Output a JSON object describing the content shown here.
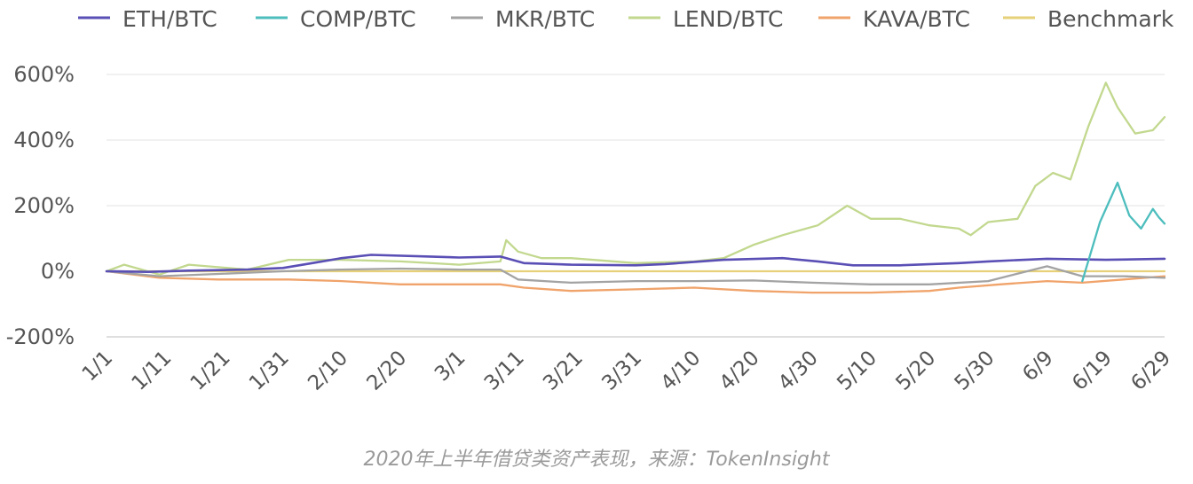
{
  "caption": "2020年上半年借贷类资产表现，来源：TokenInsight",
  "chart_data": {
    "type": "line",
    "title": "",
    "xlabel": "",
    "ylabel": "",
    "y_unit": "%",
    "ylim": [
      -200,
      600
    ],
    "y_ticks": [
      -200,
      0,
      200,
      400,
      600
    ],
    "y_tick_labels": [
      "-200%",
      "0%",
      "200%",
      "400%",
      "600%"
    ],
    "x_range": [
      "1/1",
      "6/29"
    ],
    "x_ticks": [
      "1/1",
      "1/11",
      "1/21",
      "1/31",
      "2/10",
      "2/20",
      "3/1",
      "3/11",
      "3/21",
      "3/31",
      "4/10",
      "4/20",
      "4/30",
      "5/10",
      "5/20",
      "5/30",
      "6/9",
      "6/19",
      "6/29"
    ],
    "grid": true,
    "legend_position": "top",
    "series": [
      {
        "name": "ETH/BTC",
        "color": "#5a4fb5",
        "points": [
          [
            "1/1",
            0
          ],
          [
            "1/8",
            -2
          ],
          [
            "1/15",
            2
          ],
          [
            "1/25",
            5
          ],
          [
            "1/31",
            10
          ],
          [
            "2/5",
            25
          ],
          [
            "2/10",
            40
          ],
          [
            "2/15",
            50
          ],
          [
            "2/25",
            45
          ],
          [
            "3/1",
            42
          ],
          [
            "3/8",
            45
          ],
          [
            "3/12",
            25
          ],
          [
            "3/20",
            20
          ],
          [
            "3/31",
            18
          ],
          [
            "4/5",
            22
          ],
          [
            "4/15",
            35
          ],
          [
            "4/25",
            40
          ],
          [
            "5/1",
            30
          ],
          [
            "5/7",
            18
          ],
          [
            "5/15",
            18
          ],
          [
            "5/25",
            25
          ],
          [
            "5/30",
            30
          ],
          [
            "6/9",
            38
          ],
          [
            "6/19",
            35
          ],
          [
            "6/29",
            38
          ]
        ]
      },
      {
        "name": "COMP/BTC",
        "color": "#4dbdbd",
        "points": [
          [
            "6/15",
            -30
          ],
          [
            "6/18",
            150
          ],
          [
            "6/21",
            270
          ],
          [
            "6/23",
            170
          ],
          [
            "6/25",
            130
          ],
          [
            "6/27",
            190
          ],
          [
            "6/28",
            165
          ],
          [
            "6/29",
            145
          ]
        ]
      },
      {
        "name": "MKR/BTC",
        "color": "#a3a3a3",
        "points": [
          [
            "1/1",
            0
          ],
          [
            "1/10",
            -15
          ],
          [
            "1/20",
            -8
          ],
          [
            "1/31",
            0
          ],
          [
            "2/10",
            5
          ],
          [
            "2/20",
            8
          ],
          [
            "3/1",
            5
          ],
          [
            "3/8",
            5
          ],
          [
            "3/11",
            -25
          ],
          [
            "3/20",
            -35
          ],
          [
            "3/31",
            -30
          ],
          [
            "4/10",
            -30
          ],
          [
            "4/20",
            -28
          ],
          [
            "4/30",
            -35
          ],
          [
            "5/10",
            -40
          ],
          [
            "5/20",
            -40
          ],
          [
            "5/30",
            -30
          ],
          [
            "6/9",
            15
          ],
          [
            "6/15",
            -15
          ],
          [
            "6/22",
            -15
          ],
          [
            "6/29",
            -20
          ]
        ]
      },
      {
        "name": "LEND/BTC",
        "color": "#c2d88e",
        "points": [
          [
            "1/1",
            0
          ],
          [
            "1/4",
            20
          ],
          [
            "1/10",
            -10
          ],
          [
            "1/15",
            20
          ],
          [
            "1/25",
            5
          ],
          [
            "2/1",
            35
          ],
          [
            "2/10",
            35
          ],
          [
            "2/20",
            30
          ],
          [
            "3/1",
            20
          ],
          [
            "3/8",
            30
          ],
          [
            "3/9",
            95
          ],
          [
            "3/11",
            60
          ],
          [
            "3/15",
            40
          ],
          [
            "3/20",
            40
          ],
          [
            "3/31",
            25
          ],
          [
            "4/10",
            30
          ],
          [
            "4/15",
            40
          ],
          [
            "4/20",
            80
          ],
          [
            "4/25",
            110
          ],
          [
            "5/1",
            140
          ],
          [
            "5/6",
            200
          ],
          [
            "5/10",
            160
          ],
          [
            "5/15",
            160
          ],
          [
            "5/20",
            140
          ],
          [
            "5/25",
            130
          ],
          [
            "5/27",
            110
          ],
          [
            "5/30",
            150
          ],
          [
            "6/4",
            160
          ],
          [
            "6/7",
            260
          ],
          [
            "6/10",
            300
          ],
          [
            "6/13",
            280
          ],
          [
            "6/16",
            440
          ],
          [
            "6/19",
            575
          ],
          [
            "6/21",
            500
          ],
          [
            "6/24",
            420
          ],
          [
            "6/27",
            430
          ],
          [
            "6/29",
            470
          ]
        ]
      },
      {
        "name": "KAVA/BTC",
        "color": "#f0a36a",
        "points": [
          [
            "1/1",
            0
          ],
          [
            "1/10",
            -20
          ],
          [
            "1/20",
            -25
          ],
          [
            "2/1",
            -25
          ],
          [
            "2/10",
            -30
          ],
          [
            "2/20",
            -40
          ],
          [
            "3/1",
            -40
          ],
          [
            "3/8",
            -40
          ],
          [
            "3/12",
            -50
          ],
          [
            "3/20",
            -60
          ],
          [
            "3/31",
            -55
          ],
          [
            "4/10",
            -50
          ],
          [
            "4/20",
            -60
          ],
          [
            "4/30",
            -65
          ],
          [
            "5/10",
            -65
          ],
          [
            "5/20",
            -60
          ],
          [
            "5/25",
            -50
          ],
          [
            "6/1",
            -40
          ],
          [
            "6/9",
            -30
          ],
          [
            "6/15",
            -35
          ],
          [
            "6/22",
            -25
          ],
          [
            "6/29",
            -15
          ]
        ]
      },
      {
        "name": "Benchmark",
        "color": "#e6d17a",
        "points": [
          [
            "1/1",
            0
          ],
          [
            "6/29",
            0
          ]
        ]
      }
    ]
  }
}
